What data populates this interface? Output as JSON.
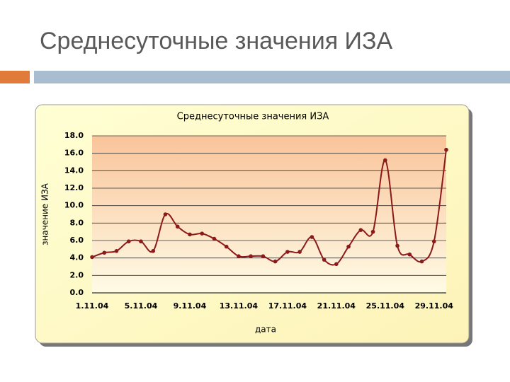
{
  "slide_title": "Среднесуточные значения ИЗА",
  "chart_data": {
    "type": "line",
    "title": "Среднесуточные значения ИЗА",
    "x_label": "дата",
    "y_label": "значение ИЗА",
    "categories": [
      "1.11.04",
      null,
      null,
      null,
      "5.11.04",
      null,
      null,
      null,
      "9.11.04",
      null,
      null,
      null,
      "13.11.04",
      null,
      null,
      null,
      "17.11.04",
      null,
      null,
      null,
      "21.11.04",
      null,
      null,
      null,
      "25.11.04",
      null,
      null,
      null,
      "29.11.04",
      null
    ],
    "series": [
      {
        "name": "ИЗА",
        "color": "#8b1a1a",
        "values": [
          4.1,
          4.6,
          4.8,
          5.9,
          5.9,
          4.8,
          9.0,
          7.6,
          6.7,
          6.8,
          6.2,
          5.3,
          4.2,
          4.2,
          4.2,
          3.6,
          4.7,
          4.7,
          6.4,
          3.8,
          3.3,
          5.3,
          7.2,
          7.0,
          15.2,
          5.4,
          4.4,
          3.6,
          5.9,
          16.4
        ]
      }
    ],
    "ylim": [
      0,
      18
    ],
    "yticks": [
      {
        "value": 0,
        "label": "0.0"
      },
      {
        "value": 2,
        "label": "2.0"
      },
      {
        "value": 4,
        "label": "4.0"
      },
      {
        "value": 6,
        "label": "6.0"
      },
      {
        "value": 8,
        "label": "8.0"
      },
      {
        "value": 10,
        "label": "10.0"
      },
      {
        "value": 12,
        "label": "12.0"
      },
      {
        "value": 14,
        "label": "14.0"
      },
      {
        "value": 16,
        "label": "16.0"
      },
      {
        "value": 18,
        "label": "18.0"
      }
    ],
    "grid": true
  }
}
